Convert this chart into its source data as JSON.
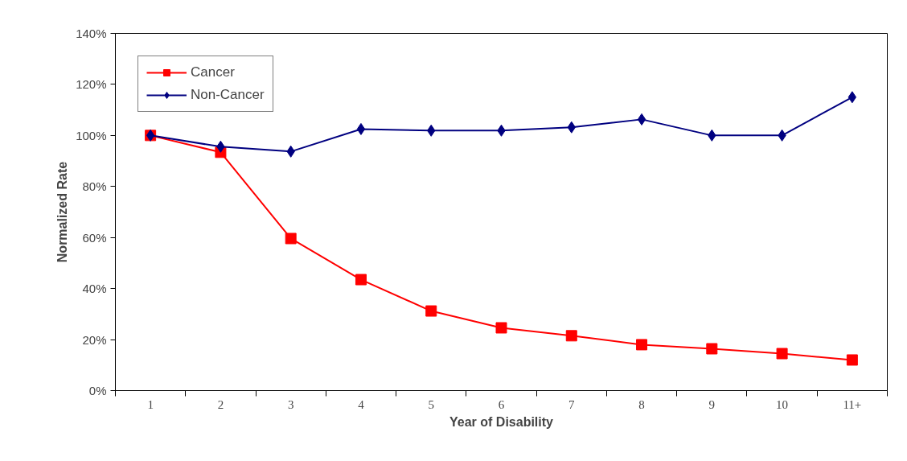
{
  "chart_data": {
    "type": "line",
    "xlabel": "Year of Disability",
    "ylabel": "Normalized Rate",
    "categories": [
      "1",
      "2",
      "3",
      "4",
      "5",
      "6",
      "7",
      "8",
      "9",
      "10",
      "11+"
    ],
    "series": [
      {
        "name": "Non-Cancer",
        "color": "#000080",
        "marker": "diamond",
        "values": [
          100,
          95.6,
          93.7,
          102.5,
          101.9,
          101.9,
          103.2,
          106.3,
          100,
          100,
          115
        ]
      },
      {
        "name": "Cancer",
        "color": "#ff0000",
        "marker": "square",
        "values": [
          100,
          93.4,
          59.6,
          43.5,
          31.2,
          24.6,
          21.5,
          18,
          16.4,
          14.5,
          12
        ]
      }
    ],
    "ylim": [
      0,
      140
    ],
    "yticks": [
      {
        "value": 0,
        "label": "0%"
      },
      {
        "value": 20,
        "label": "20%"
      },
      {
        "value": 40,
        "label": "40%"
      },
      {
        "value": 60,
        "label": "60%"
      },
      {
        "value": 80,
        "label": "80%"
      },
      {
        "value": 100,
        "label": "100%"
      },
      {
        "value": 120,
        "label": "120%"
      },
      {
        "value": 140,
        "label": "140%"
      }
    ],
    "grid": false,
    "legend": "top left",
    "line_style": "solid"
  }
}
